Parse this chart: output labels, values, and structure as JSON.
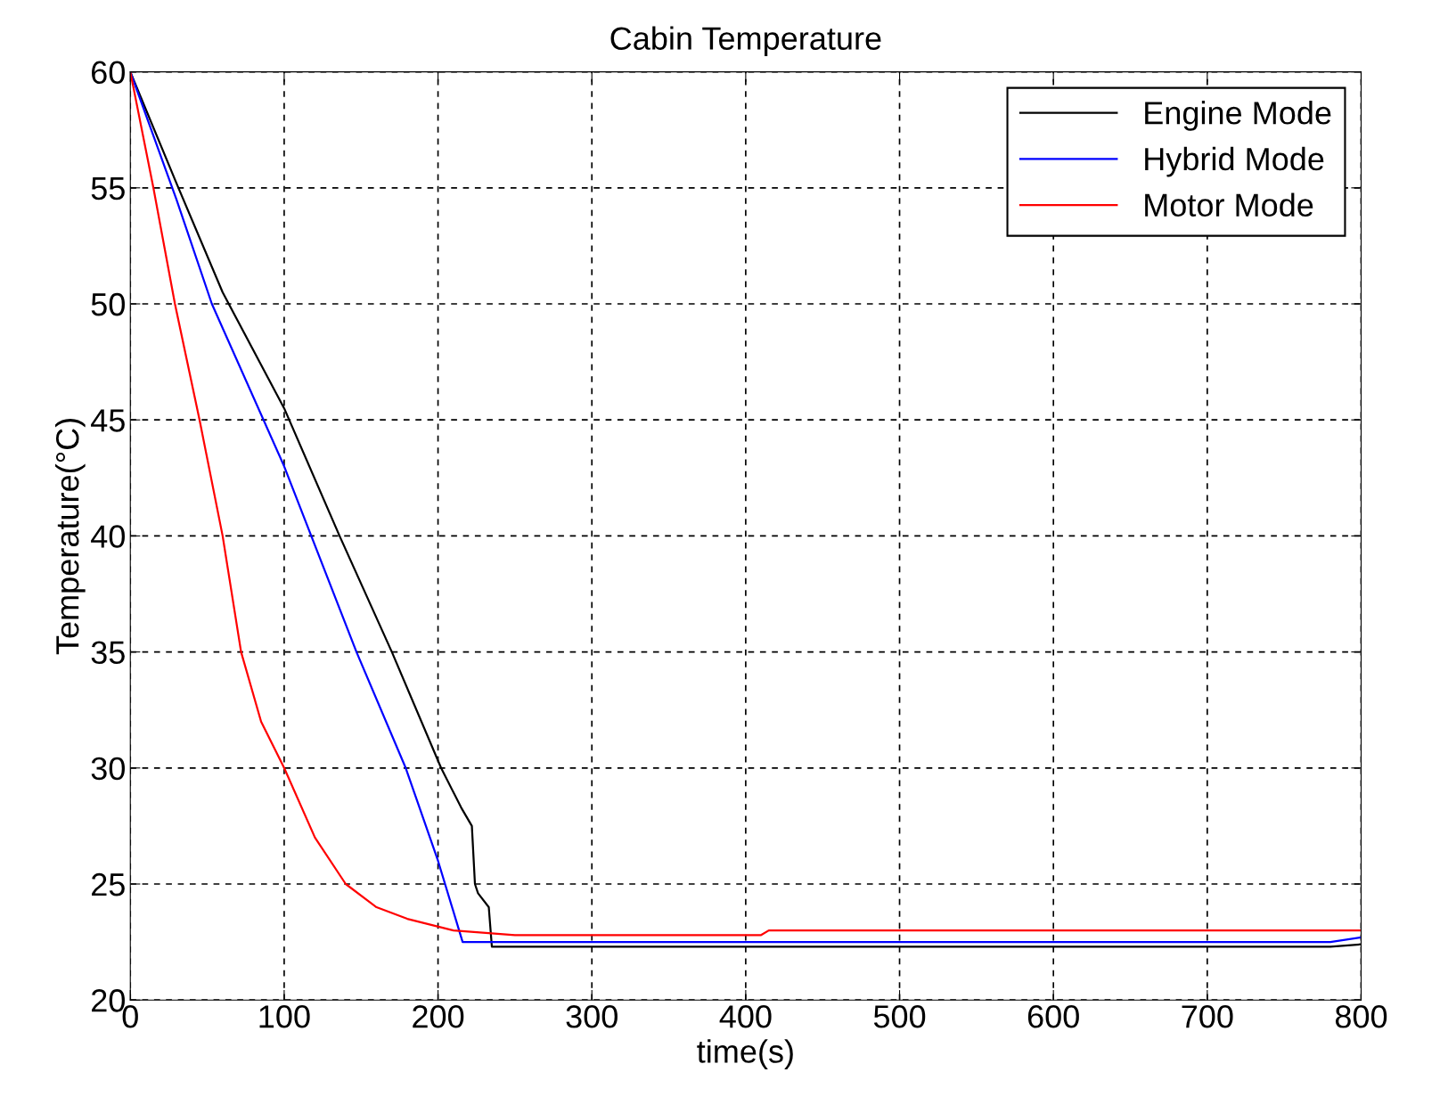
{
  "chart_data": {
    "type": "line",
    "title": "Cabin Temperature",
    "xlabel": "time(s)",
    "ylabel": "Temperature(°C)",
    "xlim": [
      0,
      800
    ],
    "ylim": [
      20,
      60
    ],
    "xticks": [
      0,
      100,
      200,
      300,
      400,
      500,
      600,
      700,
      800
    ],
    "yticks": [
      20,
      25,
      30,
      35,
      40,
      45,
      50,
      55,
      60
    ],
    "grid": true,
    "legend": "top right",
    "line_style": "solid",
    "marker": "none",
    "series": [
      {
        "name": "Engine Mode",
        "color": "#000000",
        "x": [
          0,
          30,
          60,
          100,
          136,
          170,
          202,
          215,
          222,
          224,
          226,
          233,
          235,
          240,
          400,
          780,
          800
        ],
        "values": [
          60,
          55.2,
          50.5,
          45.5,
          40,
          35,
          30,
          28.3,
          27.5,
          25,
          24.6,
          24,
          22.3,
          22.3,
          22.3,
          22.3,
          22.4
        ]
      },
      {
        "name": "Hybrid Mode",
        "color": "#0000ff",
        "x": [
          0,
          30,
          53,
          100,
          147,
          179,
          200,
          216,
          220,
          400,
          780,
          800
        ],
        "values": [
          60,
          54.5,
          50,
          43,
          35,
          30,
          26,
          22.5,
          22.5,
          22.5,
          22.5,
          22.7
        ]
      },
      {
        "name": "Motor Mode",
        "color": "#ff0000",
        "x": [
          0,
          15,
          29,
          45,
          60,
          72,
          85,
          100,
          120,
          140,
          160,
          180,
          210,
          250,
          410,
          415,
          800
        ],
        "values": [
          60,
          55,
          50,
          45,
          40,
          35,
          32,
          30,
          27,
          25,
          24,
          23.5,
          23,
          22.8,
          22.8,
          23,
          23
        ]
      }
    ]
  }
}
